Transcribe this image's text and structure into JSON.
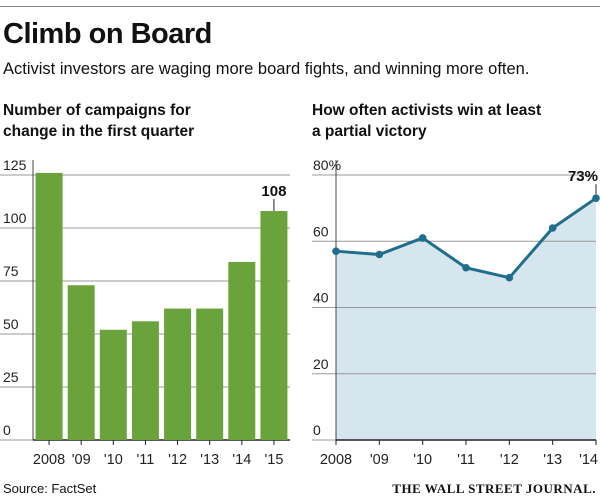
{
  "headline": "Climb on Board",
  "subhead": "Activist investors are waging more board fights, and winning more often.",
  "colors": {
    "bar": "#6aa33c",
    "line": "#1f6e8c",
    "area": "#d5e6ef",
    "grid": "#999999"
  },
  "footer": {
    "source": "Source: FactSet",
    "publisher": "THE WALL STREET JOURNAL."
  },
  "chart_data": [
    {
      "type": "bar",
      "title": "Number of campaigns for change in the first quarter",
      "title_lines": [
        "Number of campaigns for",
        "change in the first quarter"
      ],
      "categories": [
        "2008",
        "'09",
        "'10",
        "'11",
        "'12",
        "'13",
        "'14",
        "'15"
      ],
      "values": [
        126,
        73,
        52,
        56,
        62,
        62,
        84,
        108
      ],
      "ylim": [
        0,
        125
      ],
      "yticks": [
        0,
        25,
        50,
        75,
        100,
        125
      ],
      "ytick_labels": [
        "0",
        "25",
        "50",
        "75",
        "100",
        "125"
      ],
      "annotation": {
        "index": 7,
        "label": "108"
      },
      "grid": true
    },
    {
      "type": "area",
      "title": "How often activists win at least a partial victory",
      "title_lines": [
        "How often activists win at least",
        "a partial victory"
      ],
      "categories": [
        "2008",
        "'09",
        "'10",
        "'11",
        "'12",
        "'13",
        "'14"
      ],
      "values": [
        57,
        56,
        61,
        52,
        49,
        64,
        73
      ],
      "ylim": [
        0,
        80
      ],
      "yticks": [
        0,
        20,
        40,
        60,
        80
      ],
      "ytick_labels": [
        "0",
        "20",
        "40",
        "60",
        "80%"
      ],
      "annotation": {
        "index": 6,
        "label": "73%"
      },
      "grid": true
    }
  ]
}
